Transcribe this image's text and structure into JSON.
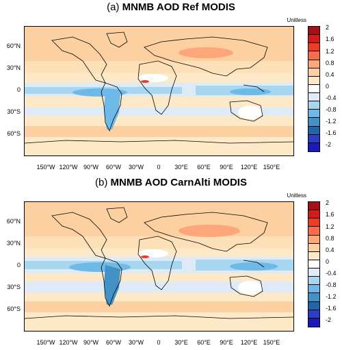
{
  "panels": [
    {
      "id": "a",
      "tag": "(a)",
      "title": "MNMB AOD Ref MODIS",
      "units": "Unitless"
    },
    {
      "id": "b",
      "tag": "(b)",
      "title": "MNMB AOD CarnAlti MODIS",
      "units": "Unitless"
    }
  ],
  "lat_labels": [
    "60°N",
    "30°N",
    "0",
    "30°S",
    "60°S"
  ],
  "lon_labels": [
    "150°W",
    "120°W",
    "90°W",
    "60°W",
    "30°W",
    "0",
    "30°E",
    "60°E",
    "90°E",
    "120°E",
    "150°E"
  ],
  "colorbar": {
    "ticks": [
      "2",
      "1.6",
      "1.2",
      "0.8",
      "0.4",
      "0",
      "-0.4",
      "-0.8",
      "-1.2",
      "-1.6",
      "-2"
    ],
    "colors": [
      "#a50f15",
      "#d7191c",
      "#f03b20",
      "#fb6a4a",
      "#fca67a",
      "#fdd0a2",
      "#fde9c7",
      "#ffffff",
      "#deebf7",
      "#a6d6f0",
      "#6fb9e8",
      "#4292c6",
      "#2166ac",
      "#2c3fc2",
      "#1a1ab8"
    ]
  }
}
